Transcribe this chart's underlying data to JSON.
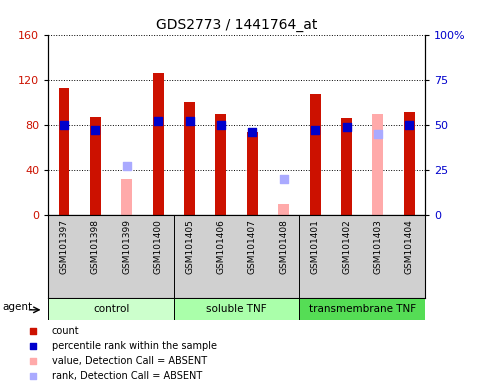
{
  "title": "GDS2773 / 1441764_at",
  "samples": [
    "GSM101397",
    "GSM101398",
    "GSM101399",
    "GSM101400",
    "GSM101405",
    "GSM101406",
    "GSM101407",
    "GSM101408",
    "GSM101401",
    "GSM101402",
    "GSM101403",
    "GSM101404"
  ],
  "groups": [
    {
      "name": "control",
      "indices": [
        0,
        1,
        2,
        3
      ],
      "color": "#ccffcc"
    },
    {
      "name": "soluble TNF",
      "indices": [
        4,
        5,
        6,
        7
      ],
      "color": "#aaffaa"
    },
    {
      "name": "transmembrane TNF",
      "indices": [
        8,
        9,
        10,
        11
      ],
      "color": "#55dd55"
    }
  ],
  "count_values": [
    113,
    87,
    null,
    126,
    100,
    90,
    74,
    null,
    107,
    86,
    null,
    91
  ],
  "count_absent_values": [
    null,
    null,
    32,
    null,
    null,
    null,
    null,
    10,
    null,
    null,
    90,
    null
  ],
  "percentile_values": [
    50,
    47,
    null,
    52,
    52,
    50,
    46,
    null,
    47,
    49,
    null,
    50
  ],
  "percentile_absent_values": [
    null,
    null,
    27,
    null,
    null,
    null,
    null,
    20,
    null,
    null,
    45,
    null
  ],
  "left_ylim": [
    0,
    160
  ],
  "left_yticks": [
    0,
    40,
    80,
    120,
    160
  ],
  "right_ylim": [
    0,
    100
  ],
  "right_yticks": [
    0,
    25,
    50,
    75,
    100
  ],
  "bar_color": "#cc1100",
  "bar_absent_color": "#ffaaaa",
  "dot_color": "#0000cc",
  "dot_absent_color": "#aaaaff",
  "bar_width": 0.35,
  "dot_size": 28,
  "label_bg_color": "#d0d0d0"
}
